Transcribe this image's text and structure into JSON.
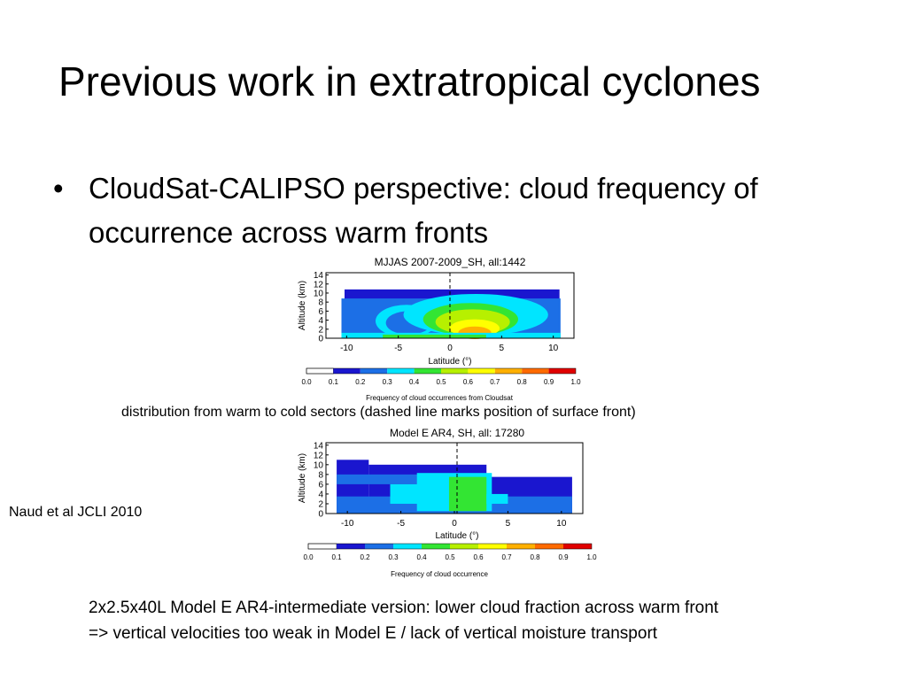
{
  "slide": {
    "title": "Previous work in extratropical cyclones",
    "bullet": "CloudSat-CALIPSO perspective: cloud frequency of occurrence across warm fronts",
    "caption_distribution": "distribution from warm to cold sectors (dashed line marks position of surface front)",
    "citation": "Naud et al JCLI 2010",
    "note_line1": "2x2.5x40L Model E AR4-intermediate version: lower cloud fraction across warm front",
    "note_line2": "=> vertical velocities too weak in Model E / lack of vertical moisture transport"
  },
  "colors": {
    "scale": [
      "#ffffff",
      "#1a16cf",
      "#1c6fe6",
      "#00e5ff",
      "#33e533",
      "#b7f000",
      "#ffff00",
      "#ffb000",
      "#ff6a00",
      "#e00000"
    ]
  },
  "chart_data": [
    {
      "type": "heatmap",
      "title": "MJJAS 2007-2009_SH, all:1442",
      "xlabel": "Latitude (°)",
      "ylabel": "Altitude (km)",
      "xlim": [
        -12,
        12
      ],
      "ylim": [
        0,
        14.5
      ],
      "x_ticks": [
        "-10",
        "-5",
        "0",
        "5",
        "10"
      ],
      "y_ticks": [
        "0",
        "2",
        "4",
        "6",
        "8",
        "10",
        "12",
        "14"
      ],
      "front_line_x": 0,
      "colorbar_label": "Frequency of cloud occurrences from Cloudsat",
      "colorbar_ticks": [
        "0.0",
        "0.1",
        "0.2",
        "0.3",
        "0.4",
        "0.5",
        "0.6",
        "0.7",
        "0.8",
        "0.9",
        "1.0"
      ]
    },
    {
      "type": "heatmap",
      "title": "Model E AR4, SH, all: 17280",
      "xlabel": "Latitude (°)",
      "ylabel": "Altitude (km)",
      "xlim": [
        -12,
        12
      ],
      "ylim": [
        0,
        14.5
      ],
      "x_ticks": [
        "-10",
        "-5",
        "0",
        "5",
        "10"
      ],
      "y_ticks": [
        "0",
        "2",
        "4",
        "6",
        "8",
        "10",
        "12",
        "14"
      ],
      "front_line_x": 0,
      "colorbar_label": "Frequency of cloud occurrence",
      "colorbar_ticks": [
        "0.0",
        "0.1",
        "0.2",
        "0.3",
        "0.4",
        "0.5",
        "0.6",
        "0.7",
        "0.8",
        "0.9",
        "1.0"
      ]
    }
  ]
}
